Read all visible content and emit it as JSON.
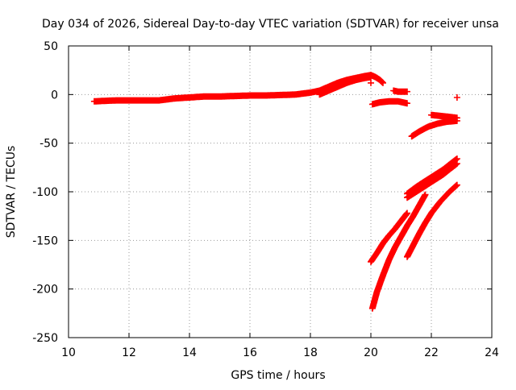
{
  "chart_data": {
    "type": "scatter",
    "title": "Day 034 of 2026, Sidereal Day-to-day VTEC variation (SDTVAR) for receiver unsa",
    "xlabel": "GPS time / hours",
    "ylabel": "SDTVAR / TECUs",
    "xlim": [
      10,
      24
    ],
    "ylim": [
      -250,
      50
    ],
    "x_ticks": [
      10,
      12,
      14,
      16,
      18,
      20,
      22,
      24
    ],
    "y_ticks": [
      50,
      0,
      -50,
      -100,
      -150,
      -200,
      -250
    ],
    "x_tick_labels": [
      "10",
      "12",
      "14",
      "16",
      "18",
      "20",
      "22",
      "24"
    ],
    "y_tick_labels": [
      "50",
      "0",
      "-50",
      "-100",
      "-150",
      "-200",
      "-250"
    ],
    "grid": true,
    "marker": "+",
    "series_color": "#ff0000",
    "series": [
      {
        "x": [
          10.85,
          11.2,
          11.6,
          12.0,
          12.5,
          13.0,
          13.5,
          14.0,
          14.5,
          15.0,
          15.5,
          16.0,
          16.5,
          17.0,
          17.5,
          18.0,
          18.3,
          18.6,
          18.9,
          19.2,
          19.5,
          19.8,
          20.0
        ],
        "y": [
          -7,
          -6.5,
          -6,
          -6,
          -6,
          -6,
          -4,
          -3,
          -2,
          -2,
          -1.5,
          -1,
          -1,
          -0.5,
          0,
          2,
          4,
          8,
          12,
          15,
          17,
          19,
          20
        ]
      },
      {
        "x": [
          18.3,
          18.6,
          18.9,
          19.2,
          19.5,
          19.8,
          20.0
        ],
        "y": [
          0,
          4,
          8,
          12,
          15,
          17,
          18
        ]
      },
      {
        "x": [
          20.0,
          20.15,
          20.3,
          20.4
        ],
        "y": [
          20,
          18,
          15,
          12
        ]
      },
      {
        "x": [
          20.05,
          20.3,
          20.6,
          20.9,
          21.2
        ],
        "y": [
          -10,
          -8,
          -7,
          -7,
          -9
        ]
      },
      {
        "x": [
          20.75,
          20.9,
          21.05,
          21.2
        ],
        "y": [
          4,
          3,
          3,
          3
        ]
      },
      {
        "x": [
          20.0,
          22.85
        ],
        "y": [
          12,
          -3
        ]
      },
      {
        "x": [
          21.35,
          21.6,
          21.9,
          22.2,
          22.5,
          22.85
        ],
        "y": [
          -43,
          -38,
          -33,
          -30,
          -28,
          -27
        ]
      },
      {
        "x": [
          22.0,
          22.3,
          22.6,
          22.85
        ],
        "y": [
          -21,
          -22,
          -23,
          -24
        ]
      },
      {
        "x": [
          21.2,
          21.5,
          21.8,
          22.1,
          22.4,
          22.6,
          22.85
        ],
        "y": [
          -102,
          -95,
          -89,
          -83,
          -77,
          -72,
          -66
        ]
      },
      {
        "x": [
          21.2,
          21.5,
          21.8,
          22.1,
          22.4,
          22.6,
          22.85
        ],
        "y": [
          -106,
          -100,
          -94,
          -88,
          -82,
          -77,
          -71
        ]
      },
      {
        "x": [
          20.0,
          20.2,
          20.4,
          20.6,
          20.8,
          21.0,
          21.2
        ],
        "y": [
          -172,
          -163,
          -153,
          -145,
          -138,
          -130,
          -122
        ]
      },
      {
        "x": [
          20.05,
          20.2,
          20.4,
          20.6,
          20.8,
          21.0,
          21.2,
          21.4,
          21.6,
          21.8
        ],
        "y": [
          -220,
          -203,
          -186,
          -170,
          -157,
          -146,
          -135,
          -125,
          -114,
          -103
        ]
      },
      {
        "x": [
          21.2,
          21.4,
          21.6,
          21.8,
          22.0,
          22.3,
          22.6,
          22.85
        ],
        "y": [
          -167,
          -155,
          -143,
          -132,
          -122,
          -110,
          -100,
          -93
        ]
      }
    ]
  }
}
